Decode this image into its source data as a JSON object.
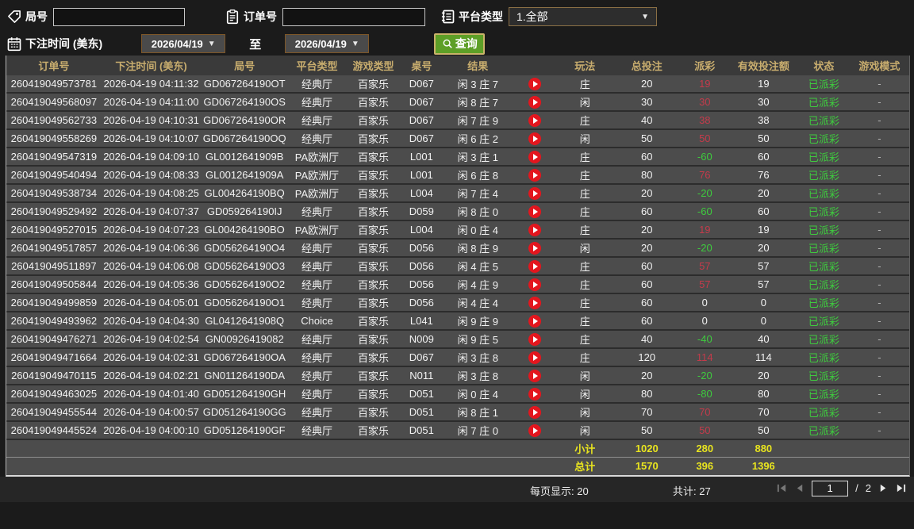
{
  "filters": {
    "game_no_label": "局号",
    "order_no_label": "订单号",
    "platform_label": "平台类型",
    "platform_value": "1.全部",
    "bet_time_label": "下注时间 (美东)",
    "date_from": "2026/04/19",
    "date_to": "2026/04/19",
    "to_label": "至",
    "query_label": "查询"
  },
  "table": {
    "headers": [
      "订单号",
      "下注时间 (美东)",
      "局号",
      "平台类型",
      "游戏类型",
      "桌号",
      "结果",
      "",
      "玩法",
      "总投注",
      "派彩",
      "有效投注额",
      "状态",
      "游戏模式"
    ],
    "rows": [
      {
        "order": "260419049573781",
        "time": "2026-04-19 04:11:32",
        "game_no": "GD067264190OT",
        "platform": "经典厅",
        "game_type": "百家乐",
        "table_no": "D067",
        "result": "闲 3 庄 7",
        "play_type": "庄",
        "total_bet": "20",
        "payout": "19",
        "valid_bet": "19",
        "status": "已派彩",
        "mode": "-"
      },
      {
        "order": "260419049568097",
        "time": "2026-04-19 04:11:00",
        "game_no": "GD067264190OS",
        "platform": "经典厅",
        "game_type": "百家乐",
        "table_no": "D067",
        "result": "闲 8 庄 7",
        "play_type": "闲",
        "total_bet": "30",
        "payout": "30",
        "valid_bet": "30",
        "status": "已派彩",
        "mode": "-"
      },
      {
        "order": "260419049562733",
        "time": "2026-04-19 04:10:31",
        "game_no": "GD067264190OR",
        "platform": "经典厅",
        "game_type": "百家乐",
        "table_no": "D067",
        "result": "闲 7 庄 9",
        "play_type": "庄",
        "total_bet": "40",
        "payout": "38",
        "valid_bet": "38",
        "status": "已派彩",
        "mode": "-"
      },
      {
        "order": "260419049558269",
        "time": "2026-04-19 04:10:07",
        "game_no": "GD067264190OQ",
        "platform": "经典厅",
        "game_type": "百家乐",
        "table_no": "D067",
        "result": "闲 6 庄 2",
        "play_type": "闲",
        "total_bet": "50",
        "payout": "50",
        "valid_bet": "50",
        "status": "已派彩",
        "mode": "-"
      },
      {
        "order": "260419049547319",
        "time": "2026-04-19 04:09:10",
        "game_no": "GL0012641909B",
        "platform": "PA欧洲厅",
        "game_type": "百家乐",
        "table_no": "L001",
        "result": "闲 3 庄 1",
        "play_type": "庄",
        "total_bet": "60",
        "payout": "-60",
        "valid_bet": "60",
        "status": "已派彩",
        "mode": "-"
      },
      {
        "order": "260419049540494",
        "time": "2026-04-19 04:08:33",
        "game_no": "GL0012641909A",
        "platform": "PA欧洲厅",
        "game_type": "百家乐",
        "table_no": "L001",
        "result": "闲 6 庄 8",
        "play_type": "庄",
        "total_bet": "80",
        "payout": "76",
        "valid_bet": "76",
        "status": "已派彩",
        "mode": "-"
      },
      {
        "order": "260419049538734",
        "time": "2026-04-19 04:08:25",
        "game_no": "GL004264190BQ",
        "platform": "PA欧洲厅",
        "game_type": "百家乐",
        "table_no": "L004",
        "result": "闲 7 庄 4",
        "play_type": "庄",
        "total_bet": "20",
        "payout": "-20",
        "valid_bet": "20",
        "status": "已派彩",
        "mode": "-"
      },
      {
        "order": "260419049529492",
        "time": "2026-04-19 04:07:37",
        "game_no": "GD059264190IJ",
        "platform": "经典厅",
        "game_type": "百家乐",
        "table_no": "D059",
        "result": "闲 8 庄 0",
        "play_type": "庄",
        "total_bet": "60",
        "payout": "-60",
        "valid_bet": "60",
        "status": "已派彩",
        "mode": "-"
      },
      {
        "order": "260419049527015",
        "time": "2026-04-19 04:07:23",
        "game_no": "GL004264190BO",
        "platform": "PA欧洲厅",
        "game_type": "百家乐",
        "table_no": "L004",
        "result": "闲 0 庄 4",
        "play_type": "庄",
        "total_bet": "20",
        "payout": "19",
        "valid_bet": "19",
        "status": "已派彩",
        "mode": "-"
      },
      {
        "order": "260419049517857",
        "time": "2026-04-19 04:06:36",
        "game_no": "GD056264190O4",
        "platform": "经典厅",
        "game_type": "百家乐",
        "table_no": "D056",
        "result": "闲 8 庄 9",
        "play_type": "闲",
        "total_bet": "20",
        "payout": "-20",
        "valid_bet": "20",
        "status": "已派彩",
        "mode": "-"
      },
      {
        "order": "260419049511897",
        "time": "2026-04-19 04:06:08",
        "game_no": "GD056264190O3",
        "platform": "经典厅",
        "game_type": "百家乐",
        "table_no": "D056",
        "result": "闲 4 庄 5",
        "play_type": "庄",
        "total_bet": "60",
        "payout": "57",
        "valid_bet": "57",
        "status": "已派彩",
        "mode": "-"
      },
      {
        "order": "260419049505844",
        "time": "2026-04-19 04:05:36",
        "game_no": "GD056264190O2",
        "platform": "经典厅",
        "game_type": "百家乐",
        "table_no": "D056",
        "result": "闲 4 庄 9",
        "play_type": "庄",
        "total_bet": "60",
        "payout": "57",
        "valid_bet": "57",
        "status": "已派彩",
        "mode": "-"
      },
      {
        "order": "260419049499859",
        "time": "2026-04-19 04:05:01",
        "game_no": "GD056264190O1",
        "platform": "经典厅",
        "game_type": "百家乐",
        "table_no": "D056",
        "result": "闲 4 庄 4",
        "play_type": "庄",
        "total_bet": "60",
        "payout": "0",
        "valid_bet": "0",
        "status": "已派彩",
        "mode": "-"
      },
      {
        "order": "260419049493962",
        "time": "2026-04-19 04:04:30",
        "game_no": "GL0412641908Q",
        "platform": "Choice",
        "game_type": "百家乐",
        "table_no": "L041",
        "result": "闲 9 庄 9",
        "play_type": "庄",
        "total_bet": "60",
        "payout": "0",
        "valid_bet": "0",
        "status": "已派彩",
        "mode": "-"
      },
      {
        "order": "260419049476271",
        "time": "2026-04-19 04:02:54",
        "game_no": "GN00926419082",
        "platform": "经典厅",
        "game_type": "百家乐",
        "table_no": "N009",
        "result": "闲 9 庄 5",
        "play_type": "庄",
        "total_bet": "40",
        "payout": "-40",
        "valid_bet": "40",
        "status": "已派彩",
        "mode": "-"
      },
      {
        "order": "260419049471664",
        "time": "2026-04-19 04:02:31",
        "game_no": "GD067264190OA",
        "platform": "经典厅",
        "game_type": "百家乐",
        "table_no": "D067",
        "result": "闲 3 庄 8",
        "play_type": "庄",
        "total_bet": "120",
        "payout": "114",
        "valid_bet": "114",
        "status": "已派彩",
        "mode": "-"
      },
      {
        "order": "260419049470115",
        "time": "2026-04-19 04:02:21",
        "game_no": "GN011264190DA",
        "platform": "经典厅",
        "game_type": "百家乐",
        "table_no": "N011",
        "result": "闲 3 庄 8",
        "play_type": "闲",
        "total_bet": "20",
        "payout": "-20",
        "valid_bet": "20",
        "status": "已派彩",
        "mode": "-"
      },
      {
        "order": "260419049463025",
        "time": "2026-04-19 04:01:40",
        "game_no": "GD051264190GH",
        "platform": "经典厅",
        "game_type": "百家乐",
        "table_no": "D051",
        "result": "闲 0 庄 4",
        "play_type": "闲",
        "total_bet": "80",
        "payout": "-80",
        "valid_bet": "80",
        "status": "已派彩",
        "mode": "-"
      },
      {
        "order": "260419049455544",
        "time": "2026-04-19 04:00:57",
        "game_no": "GD051264190GG",
        "platform": "经典厅",
        "game_type": "百家乐",
        "table_no": "D051",
        "result": "闲 8 庄 1",
        "play_type": "闲",
        "total_bet": "70",
        "payout": "70",
        "valid_bet": "70",
        "status": "已派彩",
        "mode": "-"
      },
      {
        "order": "260419049445524",
        "time": "2026-04-19 04:00:10",
        "game_no": "GD051264190GF",
        "platform": "经典厅",
        "game_type": "百家乐",
        "table_no": "D051",
        "result": "闲 7 庄 0",
        "play_type": "闲",
        "total_bet": "50",
        "payout": "50",
        "valid_bet": "50",
        "status": "已派彩",
        "mode": "-"
      }
    ],
    "subtotal": {
      "label": "小计",
      "total_bet": "1020",
      "payout": "280",
      "valid_bet": "880"
    },
    "grand_total": {
      "label": "总计",
      "total_bet": "1570",
      "payout": "396",
      "valid_bet": "1396"
    }
  },
  "pagination": {
    "per_page_text": "每页显示: 20",
    "total_text": "共计: 27",
    "current_page": "1",
    "separator": "/",
    "total_pages": "2"
  },
  "colors": {
    "accent_gold": "#c8ad6e",
    "positive_payout_red": "#c43b4b",
    "negative_payout_green": "#3ecb3e",
    "status_green": "#3ecb3e",
    "summary_yellow": "#e8e41f",
    "query_button_green": "#5d9f27",
    "play_icon_red": "#e3161e"
  }
}
